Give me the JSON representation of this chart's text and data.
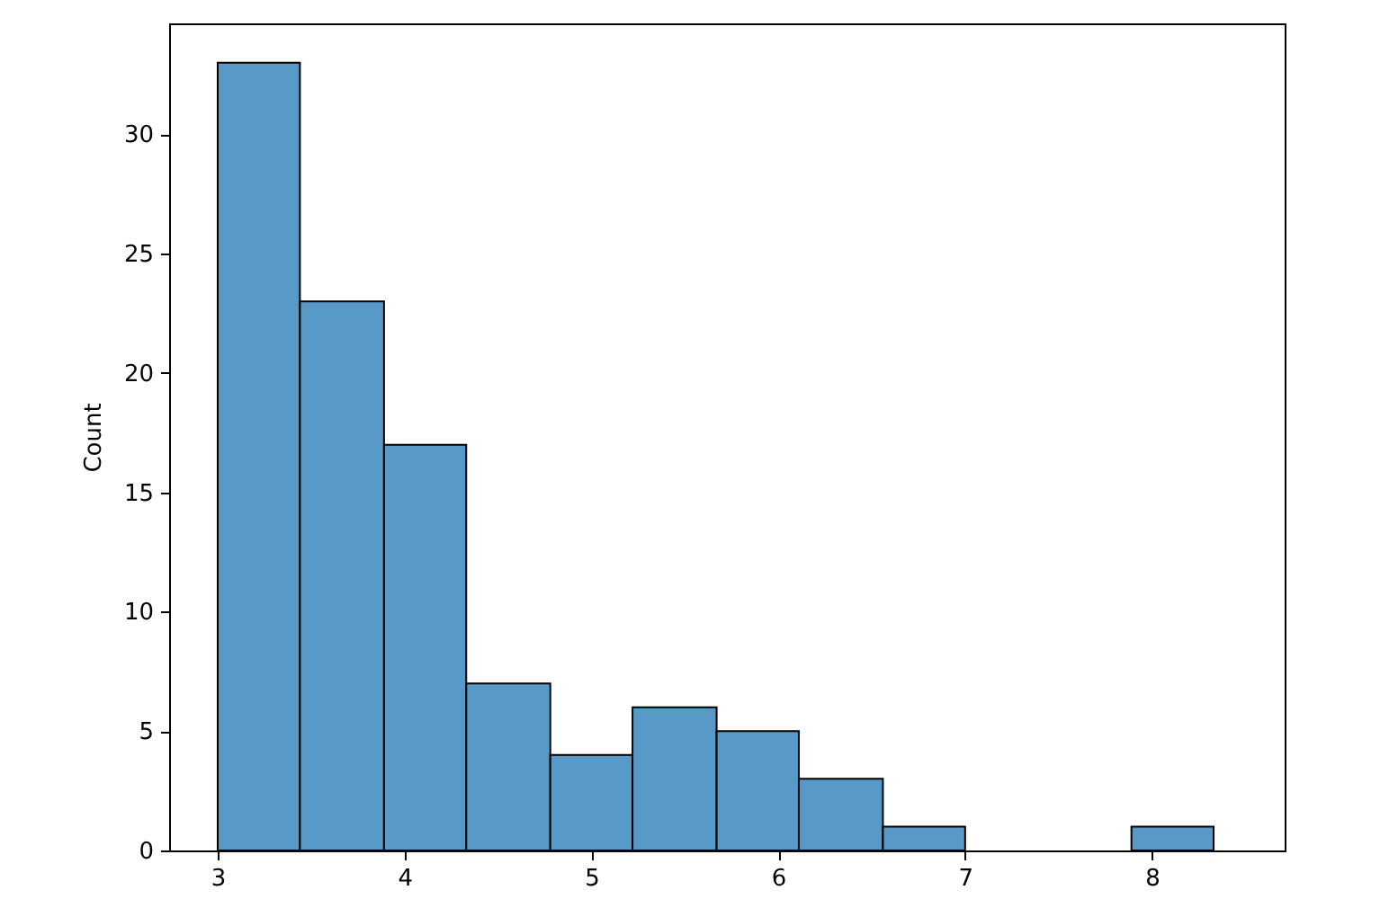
{
  "chart_data": {
    "type": "histogram",
    "ylabel": "Count",
    "bins": [
      3,
      3.44,
      3.89,
      4.33,
      4.78,
      5.22,
      5.67,
      6.11,
      6.56,
      7,
      7.89,
      8.33
    ],
    "values": [
      33,
      23,
      17,
      7,
      4,
      6,
      5,
      3,
      1,
      0,
      1
    ],
    "color": "#5799c7",
    "xlim": [
      2.74,
      8.71
    ],
    "ylim": [
      0,
      34.65
    ],
    "xticks": [
      3,
      4,
      5,
      6,
      7,
      8
    ],
    "yticks": [
      0,
      5,
      10,
      15,
      20,
      25,
      30
    ],
    "grid": false
  }
}
